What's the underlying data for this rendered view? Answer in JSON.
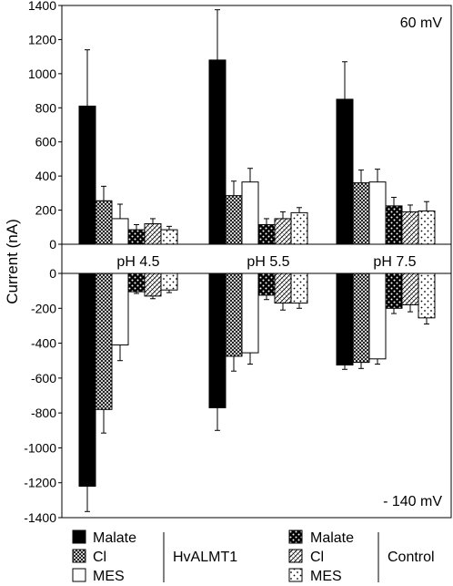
{
  "chart_data": {
    "type": "bar",
    "ylabel": "Current (nA)",
    "ylim": [
      -1400,
      1400
    ],
    "yticks": [
      1400,
      1200,
      1000,
      800,
      600,
      400,
      200,
      0,
      -200,
      -400,
      -600,
      -800,
      -1000,
      -1200,
      -1400
    ],
    "categories": [
      "pH 4.5",
      "pH 5.5",
      "pH 7.5"
    ],
    "annotations": {
      "top_right": "60 mV",
      "bottom_right": "- 140 mV"
    },
    "series": [
      {
        "group": "HvALMT1",
        "name": "Malate",
        "pattern": "solid-black",
        "values_60mV": [
          810,
          1080,
          850
        ],
        "err_60mV": [
          330,
          295,
          220
        ],
        "values_neg140mV": [
          -1220,
          -770,
          -525
        ],
        "err_neg140mV": [
          145,
          130,
          25
        ]
      },
      {
        "group": "HvALMT1",
        "name": "Cl",
        "pattern": "crosshatch",
        "values_60mV": [
          255,
          285,
          360
        ],
        "err_60mV": [
          85,
          85,
          75
        ],
        "values_neg140mV": [
          -780,
          -475,
          -510
        ],
        "err_neg140mV": [
          135,
          85,
          35
        ]
      },
      {
        "group": "HvALMT1",
        "name": "MES",
        "pattern": "white",
        "values_60mV": [
          150,
          365,
          365
        ],
        "err_60mV": [
          85,
          80,
          75
        ],
        "values_neg140mV": [
          -410,
          -455,
          -490
        ],
        "err_neg140mV": [
          90,
          65,
          30
        ]
      },
      {
        "group": "Control",
        "name": "Malate",
        "pattern": "black-dots",
        "values_60mV": [
          85,
          115,
          225
        ],
        "err_60mV": [
          30,
          35,
          50
        ],
        "values_neg140mV": [
          -105,
          -125,
          -200
        ],
        "err_neg140mV": [
          10,
          25,
          30
        ]
      },
      {
        "group": "Control",
        "name": "Cl",
        "pattern": "diagonal-hatch",
        "values_60mV": [
          120,
          150,
          190
        ],
        "err_60mV": [
          30,
          40,
          40
        ],
        "values_neg140mV": [
          -130,
          -170,
          -180
        ],
        "err_neg140mV": [
          15,
          40,
          40
        ]
      },
      {
        "group": "Control",
        "name": "MES",
        "pattern": "sparse-dots",
        "values_60mV": [
          85,
          185,
          195
        ],
        "err_60mV": [
          20,
          30,
          55
        ],
        "values_neg140mV": [
          -95,
          -170,
          -255
        ],
        "err_neg140mV": [
          15,
          30,
          35
        ]
      }
    ],
    "legend": {
      "placement": "bottom",
      "group_labels": [
        "HvALMT1",
        "Control"
      ]
    }
  }
}
